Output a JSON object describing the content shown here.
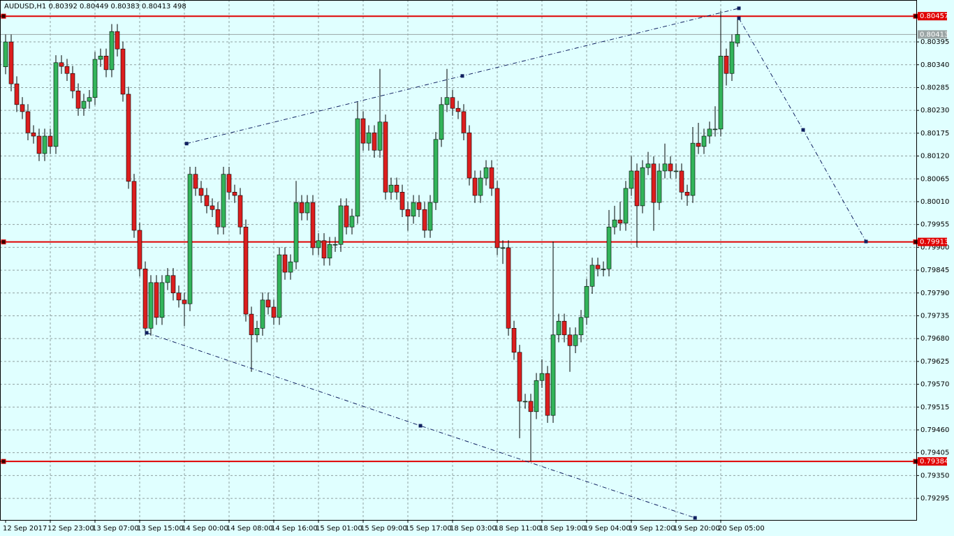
{
  "chart_data": {
    "type": "candlestick",
    "title": "AUDUSD,H1  0.80392 0.80449 0.80383 0.80413  498",
    "x_labels": [
      "12 Sep 2017",
      "12 Sep 23:00",
      "13 Sep 07:00",
      "13 Sep 15:00",
      "14 Sep 00:00",
      "14 Sep 08:00",
      "14 Sep 16:00",
      "15 Sep 01:00",
      "15 Sep 09:00",
      "15 Sep 17:00",
      "18 Sep 03:00",
      "18 Sep 11:00",
      "18 Sep 19:00",
      "19 Sep 04:00",
      "19 Sep 12:00",
      "19 Sep 20:00",
      "20 Sep 05:00"
    ],
    "ylim": [
      0.79243,
      0.80496
    ],
    "yticks": [
      0.80395,
      {
        "value": 0.8034,
        "label": "0.80340"
      },
      0.80285,
      {
        "value": 0.8023,
        "label": "0.80230"
      },
      0.80175,
      {
        "value": 0.8012,
        "label": "0.80120"
      },
      0.80065,
      {
        "value": 0.8001,
        "label": "0.80010"
      },
      0.79955,
      {
        "value": 0.799,
        "label": "0.79900"
      },
      0.79845,
      {
        "value": 0.7979,
        "label": "0.79790"
      },
      0.79735,
      {
        "value": 0.7968,
        "label": "0.79680"
      },
      0.79625,
      {
        "value": 0.7957,
        "label": "0.79570"
      },
      0.79515,
      {
        "value": 0.7946,
        "label": "0.79460"
      },
      0.79405,
      {
        "value": 0.7935,
        "label": "0.79350"
      },
      0.79295
    ],
    "grid": true,
    "up_color": "#32b45a",
    "down_color": "#dc1e1e",
    "open": [
      0.80335,
      0.80395,
      0.80294,
      0.80244,
      0.80227,
      0.80176,
      0.80168,
      0.80126,
      0.80168,
      0.80143,
      0.80345,
      0.80336,
      0.80319,
      0.80277,
      0.80235,
      0.80252,
      0.80261,
      0.80353,
      0.80361,
      0.80328,
      0.8042,
      0.80378,
      0.80269,
      0.80059,
      0.79941,
      0.79848,
      0.79705,
      0.79815,
      0.79731,
      0.79815,
      0.79832,
      0.7979,
      0.79773,
      0.79764,
      0.80076,
      0.80042,
      0.80025,
      0.8,
      0.79991,
      0.79949,
      0.80076,
      0.80033,
      0.80025,
      0.79949,
      0.79739,
      0.79689,
      0.79705,
      0.79773,
      0.79756,
      0.79731,
      0.79882,
      0.7984,
      0.79865,
      0.80008,
      0.79983,
      0.80008,
      0.79899,
      0.79916,
      0.79874,
      0.79907,
      0.79907,
      0.8,
      0.79949,
      0.79975,
      0.8021,
      0.80151,
      0.80176,
      0.80134,
      0.80202,
      0.80033,
      0.8005,
      0.80033,
      0.79991,
      0.79975,
      0.80008,
      0.79991,
      0.79941,
      0.80008,
      0.8016,
      0.80244,
      0.80261,
      0.80235,
      0.80227,
      0.80176,
      0.80067,
      0.80025,
      0.80067,
      0.80092,
      0.80042,
      0.79899,
      0.79899,
      0.79705,
      0.79647,
      0.79529,
      0.79529,
      0.79504,
      0.79579,
      0.79596,
      0.79495,
      0.79689,
      0.79722,
      0.79689,
      0.79663,
      0.79689,
      0.79731,
      0.79806,
      0.79857,
      0.79848,
      0.79848,
      0.79949,
      0.79966,
      0.79958,
      0.80042,
      0.80084,
      0.8,
      0.80092,
      0.80101,
      0.80008,
      0.80084,
      0.80101,
      0.80084,
      0.80084,
      0.80033,
      0.80025,
      0.80151,
      0.80143,
      0.80168,
      0.80185,
      0.80185,
      0.80361,
      0.80319,
      0.80392
    ],
    "high": [
      0.80413,
      0.80413,
      0.80312,
      0.80262,
      0.80245,
      0.80194,
      0.80186,
      0.80186,
      0.80186,
      0.80363,
      0.80363,
      0.80354,
      0.80337,
      0.80295,
      0.8027,
      0.80279,
      0.80371,
      0.80379,
      0.80379,
      0.80438,
      0.80438,
      0.80396,
      0.80287,
      0.80077,
      0.79959,
      0.79866,
      0.79833,
      0.79833,
      0.79833,
      0.7985,
      0.7985,
      0.79808,
      0.79791,
      0.80094,
      0.80094,
      0.8006,
      0.80043,
      0.80018,
      0.80009,
      0.80094,
      0.80094,
      0.80051,
      0.80043,
      0.79967,
      0.79757,
      0.79723,
      0.79791,
      0.79791,
      0.79774,
      0.799,
      0.799,
      0.79883,
      0.8006,
      0.80026,
      0.80026,
      0.80026,
      0.79934,
      0.79934,
      0.79925,
      0.79925,
      0.80018,
      0.80018,
      0.79993,
      0.8025,
      0.80228,
      0.80194,
      0.80194,
      0.8033,
      0.8022,
      0.80068,
      0.80068,
      0.80051,
      0.80009,
      0.80026,
      0.80026,
      0.80009,
      0.80026,
      0.80178,
      0.80262,
      0.8033,
      0.80279,
      0.80253,
      0.80245,
      0.80194,
      0.80085,
      0.80085,
      0.8011,
      0.8011,
      0.8006,
      0.79917,
      0.79917,
      0.79723,
      0.79665,
      0.79547,
      0.79547,
      0.79597,
      0.7963,
      0.79614,
      0.79914,
      0.7974,
      0.7974,
      0.79707,
      0.79707,
      0.79749,
      0.79824,
      0.79875,
      0.79875,
      0.79866,
      0.7999,
      0.8,
      0.8001,
      0.8006,
      0.8012,
      0.80102,
      0.8011,
      0.8013,
      0.80119,
      0.80102,
      0.8015,
      0.80119,
      0.80102,
      0.80102,
      0.80051,
      0.8019,
      0.802,
      0.80186,
      0.80203,
      0.8024,
      0.8047,
      0.80379,
      0.80413,
      0.80449
    ],
    "low": [
      0.80317,
      0.80276,
      0.80226,
      0.80209,
      0.80158,
      0.8015,
      0.80108,
      0.80108,
      0.80125,
      0.80125,
      0.80318,
      0.80301,
      0.80259,
      0.80217,
      0.80217,
      0.80234,
      0.80243,
      0.80335,
      0.8031,
      0.8031,
      0.8036,
      0.80251,
      0.80041,
      0.79923,
      0.7983,
      0.79687,
      0.79687,
      0.79713,
      0.79713,
      0.79797,
      0.79772,
      0.79755,
      0.7971,
      0.79746,
      0.80024,
      0.80007,
      0.79982,
      0.79973,
      0.79931,
      0.79931,
      0.80015,
      0.80007,
      0.79931,
      0.79721,
      0.796,
      0.79671,
      0.79687,
      0.79738,
      0.79713,
      0.79713,
      0.79822,
      0.79822,
      0.79847,
      0.79965,
      0.79965,
      0.79881,
      0.79881,
      0.79856,
      0.79856,
      0.79889,
      0.79889,
      0.79931,
      0.79931,
      0.79957,
      0.80133,
      0.80133,
      0.80116,
      0.80116,
      0.80015,
      0.80015,
      0.80015,
      0.79973,
      0.7994,
      0.79957,
      0.79973,
      0.79923,
      0.79923,
      0.7999,
      0.80142,
      0.80226,
      0.80217,
      0.80209,
      0.80158,
      0.80049,
      0.80007,
      0.80007,
      0.80049,
      0.80024,
      0.79881,
      0.7986,
      0.79687,
      0.79629,
      0.7944,
      0.79511,
      0.79384,
      0.79486,
      0.79561,
      0.79477,
      0.79477,
      0.79671,
      0.79671,
      0.796,
      0.79645,
      0.79671,
      0.79713,
      0.79788,
      0.7983,
      0.7983,
      0.7983,
      0.79931,
      0.7994,
      0.7994,
      0.80024,
      0.799,
      0.79982,
      0.80074,
      0.7994,
      0.7999,
      0.80066,
      0.80066,
      0.80066,
      0.80015,
      0.8,
      0.80007,
      0.80125,
      0.80125,
      0.8015,
      0.80167,
      0.80167,
      0.8029,
      0.80301,
      0.80383
    ],
    "close": [
      0.80395,
      0.80294,
      0.80244,
      0.80227,
      0.80176,
      0.80168,
      0.80126,
      0.80168,
      0.80143,
      0.80345,
      0.80336,
      0.80319,
      0.80277,
      0.80235,
      0.80252,
      0.80261,
      0.80353,
      0.80361,
      0.80328,
      0.8042,
      0.80378,
      0.80269,
      0.80059,
      0.79941,
      0.79848,
      0.79705,
      0.79815,
      0.79731,
      0.79815,
      0.79832,
      0.7979,
      0.79773,
      0.79764,
      0.80076,
      0.80042,
      0.80025,
      0.8,
      0.79991,
      0.79949,
      0.80076,
      0.80033,
      0.80025,
      0.79949,
      0.79739,
      0.79689,
      0.79705,
      0.79773,
      0.79756,
      0.79731,
      0.79882,
      0.7984,
      0.79865,
      0.80008,
      0.79983,
      0.80008,
      0.79899,
      0.79916,
      0.79874,
      0.79907,
      0.79907,
      0.8,
      0.79949,
      0.79975,
      0.8021,
      0.80151,
      0.80176,
      0.80134,
      0.80202,
      0.80033,
      0.8005,
      0.80033,
      0.79991,
      0.79975,
      0.80008,
      0.79991,
      0.79941,
      0.80008,
      0.8016,
      0.80244,
      0.80261,
      0.80235,
      0.80227,
      0.80176,
      0.80067,
      0.80025,
      0.80067,
      0.80092,
      0.80042,
      0.79899,
      0.79899,
      0.79705,
      0.79647,
      0.79529,
      0.79529,
      0.79504,
      0.79579,
      0.79596,
      0.79495,
      0.79689,
      0.79722,
      0.79689,
      0.79663,
      0.79689,
      0.79731,
      0.79806,
      0.79857,
      0.79848,
      0.79848,
      0.79949,
      0.79966,
      0.79958,
      0.80042,
      0.80084,
      0.8,
      0.80092,
      0.80101,
      0.80008,
      0.80084,
      0.80101,
      0.80084,
      0.80084,
      0.80033,
      0.80025,
      0.80151,
      0.80143,
      0.80168,
      0.80185,
      0.80185,
      0.80361,
      0.80319,
      0.80395,
      0.80413
    ],
    "levels": [
      {
        "value": 0.80457,
        "label": "0.80457",
        "color": "#e00000"
      },
      {
        "value": 0.79913,
        "label": "0.79913",
        "color": "#e00000"
      },
      {
        "value": 0.79384,
        "label": "0.79384",
        "color": "#e00000"
      }
    ],
    "current_price": {
      "value": 0.80413,
      "label": "0.80413",
      "color": "#9aa4a4"
    },
    "trendlines": [
      {
        "x": [
          32.4,
          81.75,
          131.25
        ],
        "y": [
          0.8015,
          0.80313,
          0.80476
        ]
      },
      {
        "x": [
          25.25,
          74.25,
          123.4
        ],
        "y": [
          0.79694,
          0.7947,
          0.79248
        ]
      },
      {
        "x": [
          131.25,
          142.75,
          154
        ],
        "y": [
          0.80452,
          0.80183,
          0.79914
        ]
      }
    ]
  }
}
